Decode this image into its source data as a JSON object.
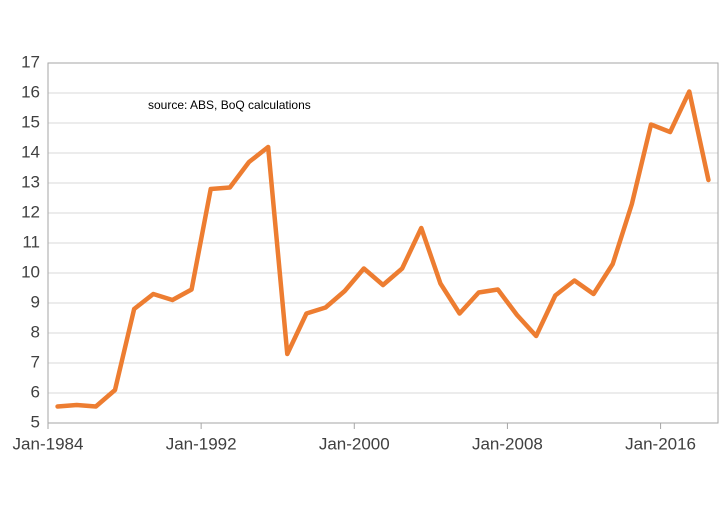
{
  "chart_data": {
    "type": "line",
    "annotation": "source:  ABS, BoQ calculations",
    "x": [
      1984.5,
      1985.5,
      1986.5,
      1987.5,
      1988.5,
      1989.5,
      1990.5,
      1991.5,
      1992.5,
      1993.5,
      1994.5,
      1995.5,
      1996.5,
      1997.5,
      1998.5,
      1999.5,
      2000.5,
      2001.5,
      2002.5,
      2003.5,
      2004.5,
      2005.5,
      2006.5,
      2007.5,
      2008.5,
      2009.5,
      2010.5,
      2011.5,
      2012.5,
      2013.5,
      2014.5,
      2015.5,
      2016.5,
      2017.5,
      2018.5
    ],
    "values": [
      5.55,
      5.6,
      5.55,
      6.1,
      8.8,
      9.3,
      9.1,
      9.45,
      12.8,
      12.85,
      13.7,
      14.2,
      7.3,
      8.65,
      8.85,
      9.4,
      10.15,
      9.6,
      10.15,
      11.5,
      9.65,
      8.65,
      9.35,
      9.45,
      8.6,
      7.9,
      9.25,
      9.75,
      9.3,
      10.3,
      12.3,
      14.95,
      14.7,
      16.05,
      13.1
    ],
    "color": "#ed7d31",
    "xlim": [
      1984,
      2019
    ],
    "xticks": [
      {
        "value": 1984,
        "label": "Jan-1984"
      },
      {
        "value": 1992,
        "label": "Jan-1992"
      },
      {
        "value": 2000,
        "label": "Jan-2000"
      },
      {
        "value": 2008,
        "label": "Jan-2008"
      },
      {
        "value": 2016,
        "label": "Jan-2016"
      }
    ],
    "ylim": [
      5,
      17
    ],
    "yticks": [
      5,
      6,
      7,
      8,
      9,
      10,
      11,
      12,
      13,
      14,
      15,
      16,
      17
    ],
    "grid": true
  }
}
